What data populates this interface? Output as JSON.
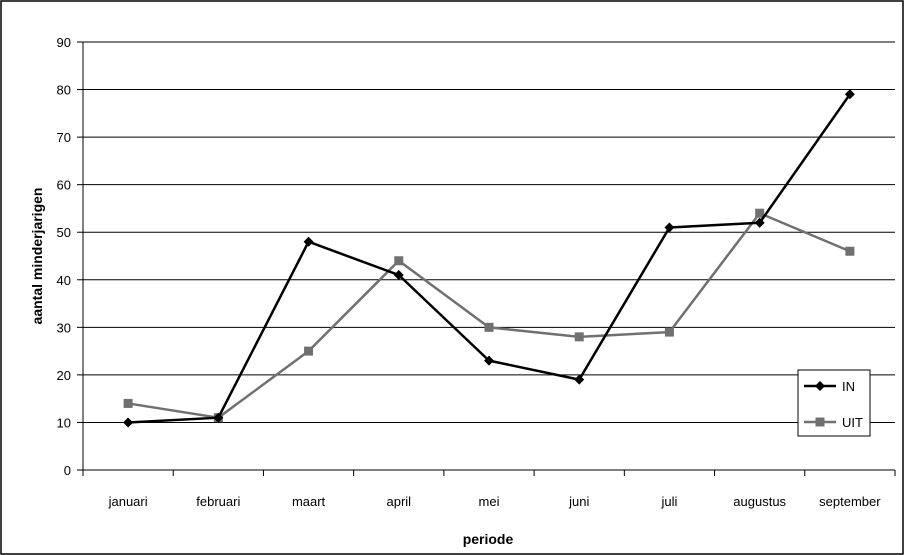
{
  "chart_data": {
    "type": "line",
    "title": "",
    "xlabel": "periode",
    "ylabel": "aantal minderjarigen",
    "ylim": [
      0,
      90
    ],
    "yticks": [
      0,
      10,
      20,
      30,
      40,
      50,
      60,
      70,
      80,
      90
    ],
    "grid": "horizontal",
    "legend_position": "bottom-right",
    "categories": [
      "januari",
      "februari",
      "maart",
      "april",
      "mei",
      "juni",
      "juli",
      "augustus",
      "september"
    ],
    "series": [
      {
        "name": "IN",
        "color": "#000000",
        "marker": "diamond",
        "values": [
          10,
          11,
          48,
          41,
          23,
          19,
          51,
          52,
          79
        ]
      },
      {
        "name": "UIT",
        "color": "#707070",
        "marker": "square",
        "values": [
          14,
          11,
          25,
          44,
          30,
          28,
          29,
          54,
          46
        ]
      }
    ]
  }
}
